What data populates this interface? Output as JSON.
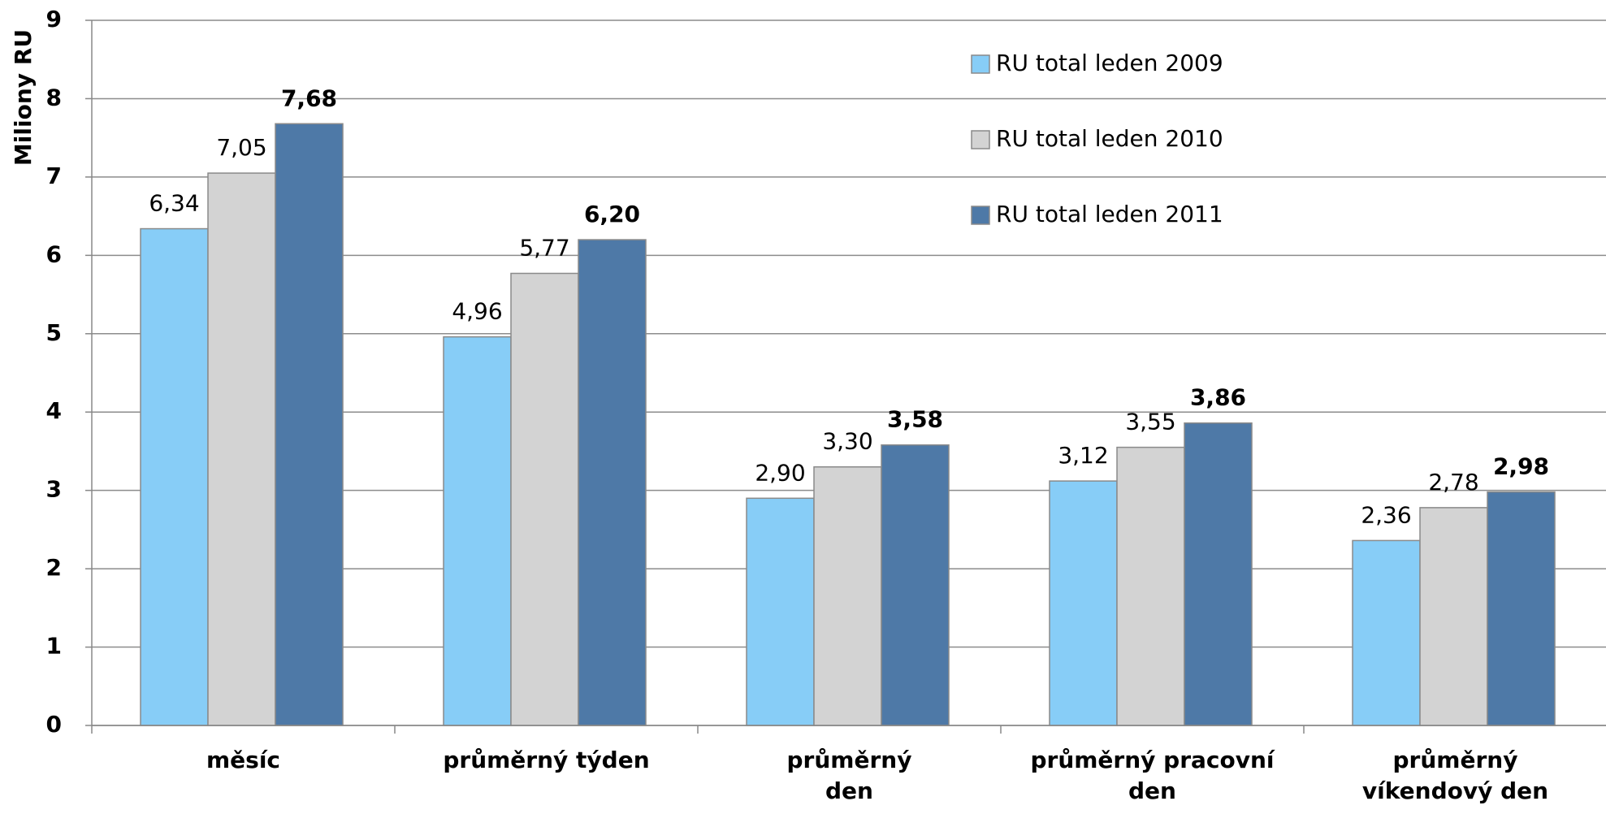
{
  "chart_data": {
    "type": "bar",
    "y_label": "Miliony RU",
    "categories": [
      "měsíc",
      "průměrný týden",
      "průměrný\nden",
      "průměrný pracovní den",
      "průměrný\nvíkendový den"
    ],
    "series": [
      {
        "name": "RU total leden 2009",
        "color": "#87cdf7",
        "values": [
          6.34,
          4.96,
          2.9,
          3.12,
          2.36
        ],
        "value_labels": [
          "6,34",
          "4,96",
          "2,90",
          "3,12",
          "2,36"
        ]
      },
      {
        "name": "RU total leden 2010",
        "color": "#d3d3d3",
        "values": [
          7.05,
          5.77,
          3.3,
          3.55,
          2.78
        ],
        "value_labels": [
          "7,05",
          "5,77",
          "3,30",
          "3,55",
          "2,78"
        ]
      },
      {
        "name": "RU total leden 2011",
        "color": "#4e79a7",
        "values": [
          7.68,
          6.2,
          3.58,
          3.86,
          2.98
        ],
        "value_labels": [
          "7,68",
          "6,20",
          "3,58",
          "3,86",
          "2,98"
        ]
      }
    ],
    "ylim": [
      0,
      9
    ],
    "yticks": [
      0,
      1,
      2,
      3,
      4,
      5,
      6,
      7,
      8,
      9
    ],
    "grid": true,
    "legend": "top-right"
  }
}
